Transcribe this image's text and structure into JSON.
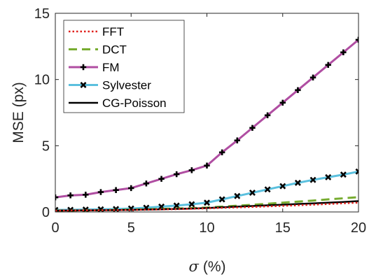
{
  "chart_data": {
    "type": "line",
    "xlabel_symbol": "σ",
    "xlabel_unit": "(%)",
    "ylabel": "MSE (px)",
    "xlim": [
      0,
      20
    ],
    "ylim": [
      0,
      15
    ],
    "xticks": [
      0,
      5,
      10,
      15,
      20
    ],
    "yticks": [
      0,
      5,
      10,
      15
    ],
    "grid": false,
    "legend_position": "top-left",
    "x": [
      0,
      1,
      2,
      3,
      4,
      5,
      6,
      7,
      8,
      9,
      10,
      11,
      12,
      13,
      14,
      15,
      16,
      17,
      18,
      19,
      20
    ],
    "series": [
      {
        "name": "FFT",
        "style": "dotted",
        "color": "#e0201c",
        "marker": "none",
        "values": [
          0.1,
          0.11,
          0.12,
          0.13,
          0.14,
          0.15,
          0.17,
          0.19,
          0.21,
          0.24,
          0.27,
          0.31,
          0.34,
          0.38,
          0.42,
          0.46,
          0.5,
          0.55,
          0.6,
          0.65,
          0.7
        ]
      },
      {
        "name": "DCT",
        "style": "dashed",
        "color": "#77ac30",
        "marker": "none",
        "values": [
          0.1,
          0.11,
          0.12,
          0.13,
          0.15,
          0.17,
          0.2,
          0.23,
          0.26,
          0.29,
          0.33,
          0.4,
          0.47,
          0.54,
          0.62,
          0.7,
          0.78,
          0.86,
          0.95,
          1.03,
          1.12
        ]
      },
      {
        "name": "FM",
        "style": "solid",
        "color": "#b04ea2",
        "marker": "plus",
        "values": [
          1.1,
          1.25,
          1.3,
          1.5,
          1.65,
          1.8,
          2.15,
          2.5,
          2.85,
          3.15,
          3.5,
          4.5,
          5.4,
          6.35,
          7.3,
          8.25,
          9.2,
          10.15,
          11.1,
          12.05,
          13.0
        ]
      },
      {
        "name": "Sylvester",
        "style": "solid",
        "color": "#5bc0de",
        "marker": "x",
        "values": [
          0.15,
          0.16,
          0.18,
          0.2,
          0.22,
          0.26,
          0.32,
          0.4,
          0.48,
          0.58,
          0.7,
          0.95,
          1.2,
          1.45,
          1.7,
          1.95,
          2.2,
          2.42,
          2.62,
          2.82,
          3.05
        ]
      },
      {
        "name": "CG-Poisson",
        "style": "solid",
        "color": "#000000",
        "marker": "none",
        "values": [
          0.1,
          0.11,
          0.12,
          0.13,
          0.14,
          0.16,
          0.18,
          0.2,
          0.23,
          0.26,
          0.3,
          0.35,
          0.4,
          0.45,
          0.5,
          0.55,
          0.6,
          0.65,
          0.7,
          0.75,
          0.82
        ]
      }
    ]
  }
}
